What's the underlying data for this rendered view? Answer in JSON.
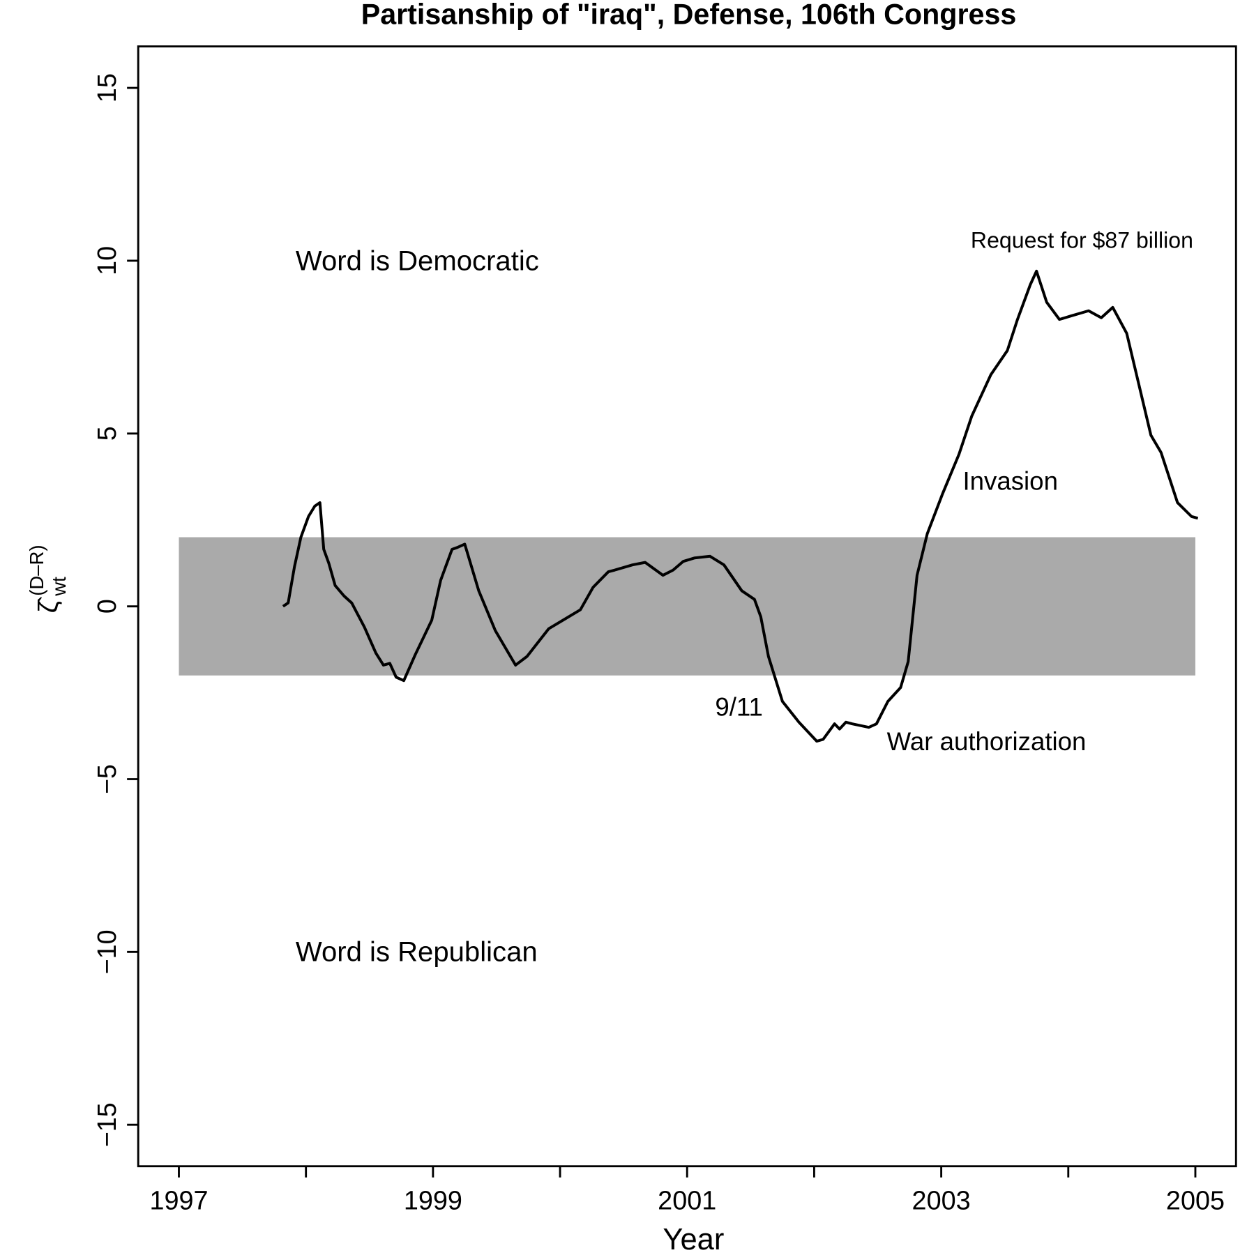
{
  "chart_data": {
    "type": "line",
    "title": "Partisanship of \"iraq\", Defense, 106th Congress",
    "xlabel": "Year",
    "ylabel": "ζ̂",
    "ylabel_sub": "wt",
    "ylabel_sup": "(D–R)",
    "xlim": [
      1996.68,
      2005.32
    ],
    "ylim": [
      -16.2,
      16.2
    ],
    "xticks": [
      1997,
      1999,
      2001,
      2003,
      2005
    ],
    "xminor_ticks": [
      1998,
      2000,
      2002,
      2004
    ],
    "yticks": [
      {
        "value": -15,
        "label": "−15"
      },
      {
        "value": -10,
        "label": "−10"
      },
      {
        "value": -5,
        "label": "−5"
      },
      0,
      5,
      10,
      15
    ],
    "band": {
      "xmin": 1997,
      "xmax": 2005,
      "ymin": -2,
      "ymax": 2,
      "color": "#aaaaaa"
    },
    "annotations": [
      "Word is Democratic",
      "Word is Republican",
      "Request for $87 billion",
      "Invasion",
      "9/11",
      "War authorization"
    ],
    "series": [
      {
        "color": "#000000",
        "x": [
          1997.82,
          1997.86,
          1997.91,
          1997.96,
          1998.02,
          1998.07,
          1998.11,
          1998.14,
          1998.18,
          1998.23,
          1998.3,
          1998.36,
          1998.46,
          1998.55,
          1998.61,
          1998.66,
          1998.71,
          1998.77,
          1998.86,
          1998.99,
          1999.06,
          1999.15,
          1999.19,
          1999.25,
          1999.36,
          1999.49,
          1999.65,
          1999.74,
          1999.91,
          2000.16,
          2000.26,
          2000.38,
          2000.43,
          2000.57,
          2000.67,
          2000.81,
          2000.89,
          2000.97,
          2001.06,
          2001.18,
          2001.29,
          2001.43,
          2001.53,
          2001.58,
          2001.64,
          2001.75,
          2001.88,
          2002.02,
          2002.07,
          2002.16,
          2002.2,
          2002.25,
          2002.3,
          2002.43,
          2002.49,
          2002.58,
          2002.68,
          2002.74,
          2002.81,
          2002.89,
          2003.01,
          2003.14,
          2003.24,
          2003.39,
          2003.52,
          2003.6,
          2003.7,
          2003.75,
          2003.83,
          2003.93,
          2004.02,
          2004.16,
          2004.26,
          2004.35,
          2004.46,
          2004.65,
          2004.73,
          2004.86,
          2004.97,
          2005.02
        ],
        "values": [
          0,
          0.1,
          1.15,
          2.0,
          2.6,
          2.9,
          3.0,
          1.65,
          1.25,
          0.6,
          0.3,
          0.1,
          -0.6,
          -1.35,
          -1.7,
          -1.65,
          -2.05,
          -2.15,
          -1.4,
          -0.4,
          0.75,
          1.65,
          1.7,
          1.8,
          0.45,
          -0.7,
          -1.7,
          -1.45,
          -0.65,
          -0.1,
          0.55,
          1.0,
          1.05,
          1.2,
          1.27,
          0.9,
          1.05,
          1.3,
          1.4,
          1.45,
          1.2,
          0.45,
          0.2,
          -0.3,
          -1.45,
          -2.75,
          -3.35,
          -3.9,
          -3.85,
          -3.4,
          -3.55,
          -3.35,
          -3.4,
          -3.5,
          -3.4,
          -2.75,
          -2.35,
          -1.6,
          0.9,
          2.1,
          3.25,
          4.4,
          5.5,
          6.7,
          7.4,
          8.3,
          9.3,
          9.7,
          8.8,
          8.3,
          8.4,
          8.55,
          8.35,
          8.65,
          7.9,
          4.95,
          4.45,
          3.0,
          2.6,
          2.55
        ]
      }
    ]
  }
}
